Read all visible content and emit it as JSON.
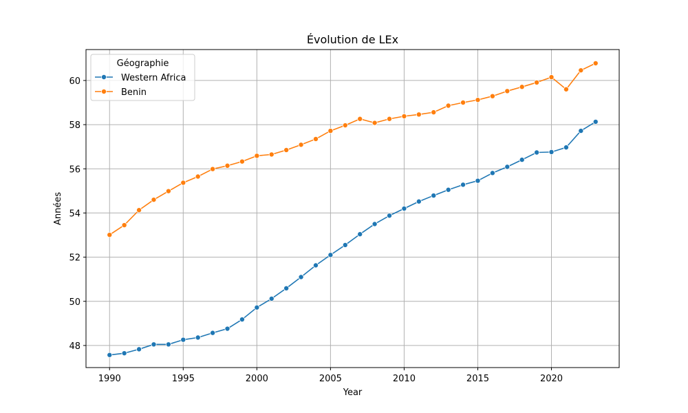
{
  "chart_data": {
    "type": "line",
    "title": "Évolution de LEx",
    "xlabel": "Year",
    "ylabel": "Années",
    "xlim": [
      1988.4,
      2024.6
    ],
    "ylim": [
      47.0,
      61.4
    ],
    "xticks": [
      1990,
      1995,
      2000,
      2005,
      2010,
      2015,
      2020
    ],
    "yticks": [
      48,
      50,
      52,
      54,
      56,
      58,
      60
    ],
    "grid": true,
    "legend": {
      "title": "Géographie",
      "placement": "top-left"
    },
    "x": [
      1990,
      1991,
      1992,
      1993,
      1994,
      1995,
      1996,
      1997,
      1998,
      1999,
      2000,
      2001,
      2002,
      2003,
      2004,
      2005,
      2006,
      2007,
      2008,
      2009,
      2010,
      2011,
      2012,
      2013,
      2014,
      2015,
      2016,
      2017,
      2018,
      2019,
      2020,
      2021,
      2022,
      2023
    ],
    "series": [
      {
        "name": "Western Africa",
        "color": "#1f77b4",
        "values": [
          47.57,
          47.65,
          47.83,
          48.05,
          48.05,
          48.26,
          48.36,
          48.57,
          48.76,
          49.18,
          49.72,
          50.12,
          50.59,
          51.1,
          51.63,
          52.1,
          52.55,
          53.04,
          53.5,
          53.88,
          54.2,
          54.52,
          54.79,
          55.05,
          55.28,
          55.46,
          55.81,
          56.09,
          56.41,
          56.74,
          56.76,
          56.97,
          57.72,
          58.13
        ]
      },
      {
        "name": "Benin",
        "color": "#ff7f0e",
        "values": [
          53.01,
          53.45,
          54.13,
          54.6,
          54.99,
          55.37,
          55.65,
          55.99,
          56.14,
          56.33,
          56.59,
          56.65,
          56.85,
          57.09,
          57.35,
          57.72,
          57.97,
          58.26,
          58.08,
          58.26,
          58.38,
          58.46,
          58.56,
          58.86,
          59.0,
          59.12,
          59.29,
          59.52,
          59.71,
          59.91,
          60.15,
          59.6,
          60.46,
          60.78
        ]
      }
    ]
  }
}
